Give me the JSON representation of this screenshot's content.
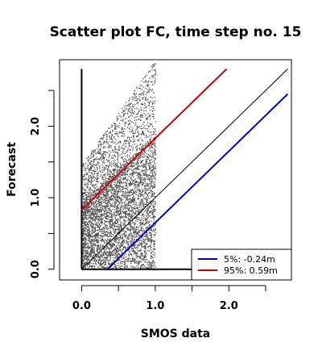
{
  "chart_data": {
    "type": "scatter",
    "title": "Scatter plot FC, time step no. 15",
    "xlabel": "SMOS data",
    "ylabel": "Forecast",
    "xlim": [
      -0.3,
      2.85
    ],
    "ylim": [
      -0.15,
      2.93
    ],
    "x_ticks": [
      0.0,
      0.5,
      1.0,
      1.5,
      2.0,
      2.5
    ],
    "x_tick_labels": [
      {
        "value": 0.0,
        "label": "0.0"
      },
      {
        "value": 1.0,
        "label": "1.0"
      },
      {
        "value": 2.0,
        "label": "2.0"
      }
    ],
    "y_ticks": [
      0.0,
      0.5,
      1.0,
      1.5,
      2.0,
      2.5
    ],
    "y_tick_labels": [
      {
        "value": 0.0,
        "label": "0.0"
      },
      {
        "value": 1.0,
        "label": "1.0"
      },
      {
        "value": 2.0,
        "label": "2.0"
      }
    ],
    "scatter": {
      "color": "#505050",
      "x_range": [
        0.0,
        1.0
      ],
      "y_range": [
        0.0,
        2.93
      ],
      "dense_band": {
        "low": 0.0,
        "high_at_x0": 0.95,
        "high_at_x1": 1.9
      }
    },
    "lines": [
      {
        "kind": "identity",
        "color": "#000000",
        "x": [
          0.0,
          2.8
        ],
        "y": [
          0.0,
          2.8
        ]
      },
      {
        "kind": "quantile",
        "name": "5%:  -0.24m",
        "color": "#0000cc",
        "offset": -0.35,
        "x": [
          0.35,
          2.8
        ],
        "y": [
          0.0,
          2.45
        ]
      },
      {
        "kind": "quantile",
        "name": "95%:  0.59m",
        "color": "#cc0000",
        "offset": 0.83,
        "x": [
          0.0,
          1.97
        ],
        "y": [
          0.83,
          2.8
        ]
      }
    ],
    "extra_axes": [
      {
        "kind": "vertical",
        "color": "#000000",
        "x": 0.0,
        "y": [
          0.0,
          2.8
        ]
      },
      {
        "kind": "horizontal",
        "color": "#000000",
        "y": 0.0,
        "x": [
          0.0,
          2.8
        ]
      }
    ],
    "legend": {
      "position": "bottom-right",
      "entries": [
        {
          "label": "5%:  -0.24m",
          "color": "#0000cc"
        },
        {
          "label": "95%:  0.59m",
          "color": "#cc0000"
        }
      ]
    },
    "grid": false
  }
}
